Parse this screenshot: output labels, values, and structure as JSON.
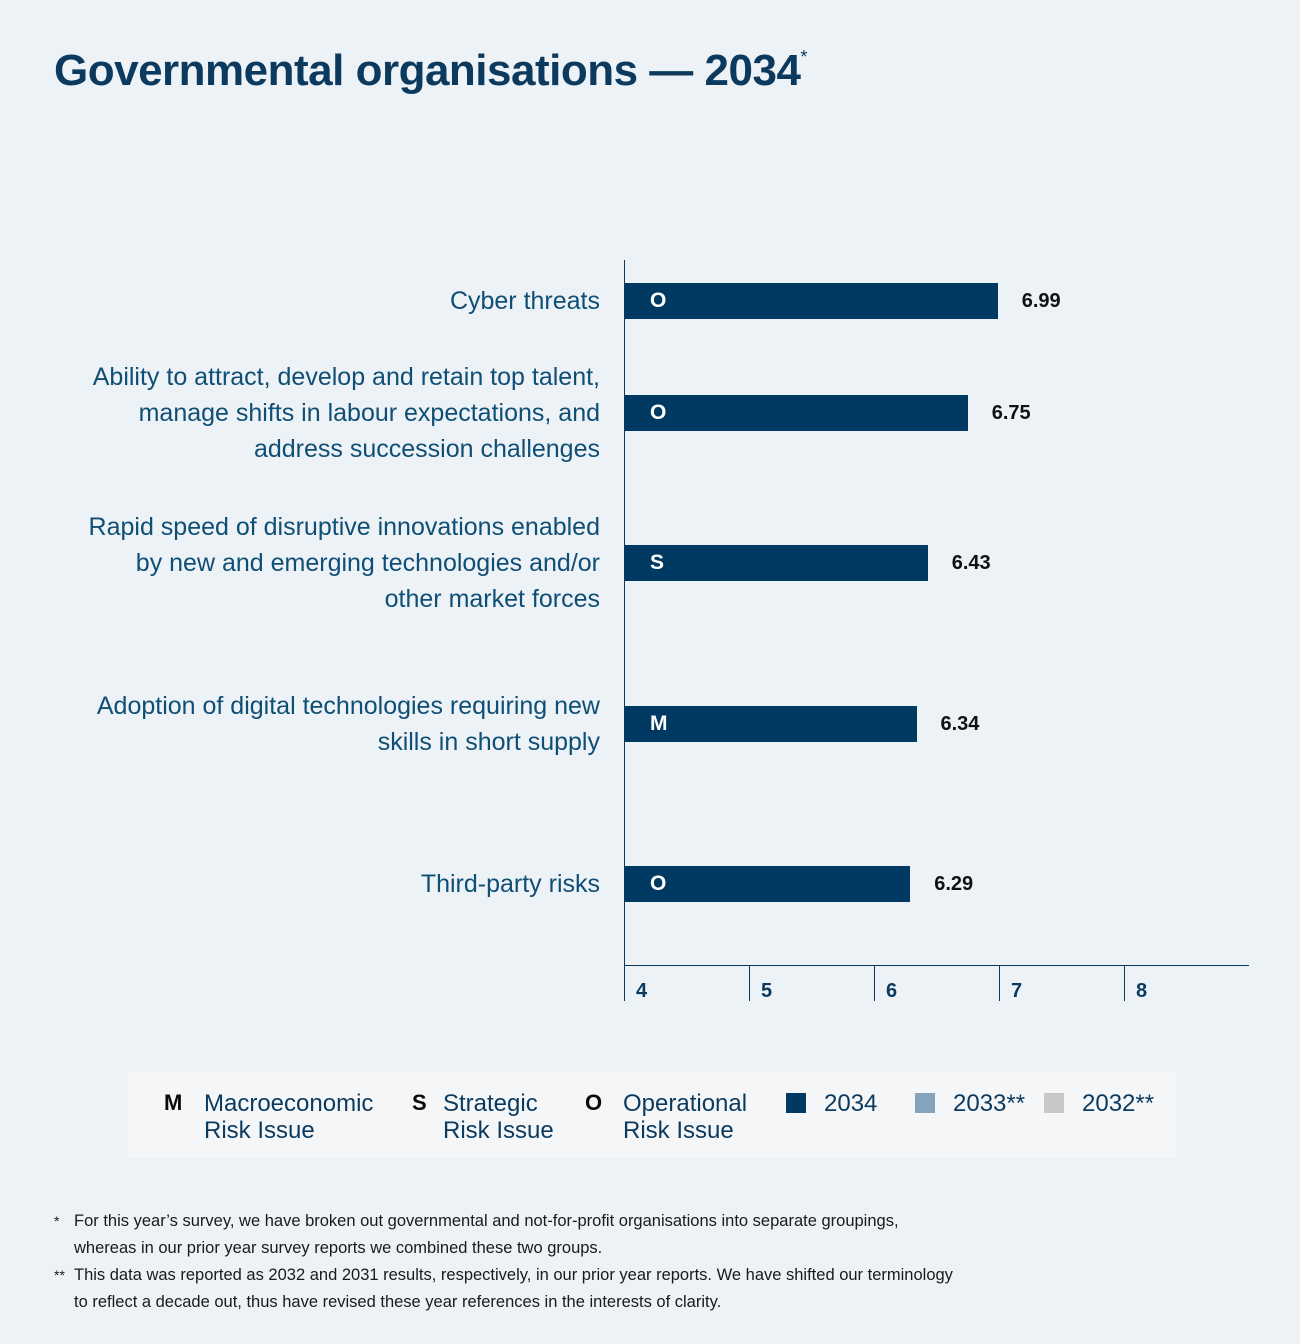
{
  "title": "Governmental organisations — 2034",
  "title_mark": "*",
  "chart_data": {
    "type": "bar",
    "orientation": "horizontal",
    "categories": [
      "Cyber threats",
      "Ability to attract, develop and retain top talent, manage shifts in labour expectations, and address succession challenges",
      "Rapid speed of disruptive innovations enabled by new and emerging technologies and/or other market forces",
      "Adoption of digital technologies requiring new skills in short supply",
      "Third-party risks"
    ],
    "category_lines": [
      [
        "Cyber threats"
      ],
      [
        "Ability to attract, develop and retain top talent,",
        "manage shifts in labour expectations, and",
        "address succession challenges"
      ],
      [
        "Rapid speed of disruptive innovations enabled",
        "by new and emerging technologies and/or",
        "other market forces"
      ],
      [
        "Adoption of digital technologies requiring new",
        "skills in short supply"
      ],
      [
        "Third-party risks"
      ]
    ],
    "risk_types": [
      "O",
      "O",
      "S",
      "M",
      "O"
    ],
    "series": [
      {
        "name": "2034",
        "values": [
          6.99,
          6.75,
          6.43,
          6.34,
          6.29
        ],
        "color": "#003a63"
      }
    ],
    "value_labels": [
      "6.99",
      "6.75",
      "6.43",
      "6.34",
      "6.29"
    ],
    "xlim": [
      4,
      9
    ],
    "xticks": [
      "4",
      "5",
      "6",
      "7",
      "8"
    ],
    "xlabel": "",
    "ylabel": ""
  },
  "legend": {
    "risk_types": [
      {
        "key": "M",
        "line1": "Macroeconomic",
        "line2": "Risk Issue"
      },
      {
        "key": "S",
        "line1": "Strategic",
        "line2": "Risk Issue"
      },
      {
        "key": "O",
        "line1": "Operational",
        "line2": "Risk Issue"
      }
    ],
    "years": [
      {
        "label": "2034",
        "color": "#003a63"
      },
      {
        "label": "2033**",
        "color": "#85a3bb"
      },
      {
        "label": "2032**",
        "color": "#c8c8c8"
      }
    ]
  },
  "footnotes": [
    {
      "mark": "*",
      "text": "For this year’s survey, we have broken out governmental and not-for-profit organisations into separate groupings, whereas in our prior year survey reports we combined these two groups."
    },
    {
      "mark": "**",
      "text": "This data was reported as 2032 and 2031 results, respectively, in our prior year reports. We have shifted our terminology to reflect a decade out, thus have revised these year references in the interests of clarity."
    }
  ]
}
